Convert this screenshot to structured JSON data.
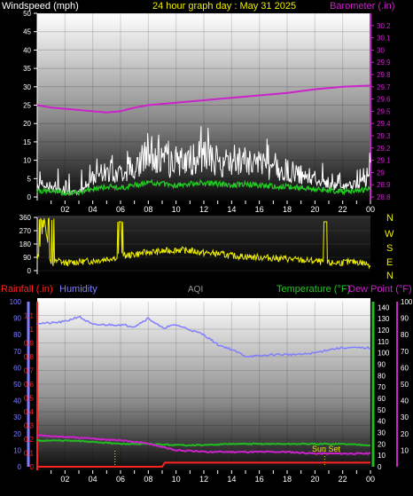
{
  "panel_top": {
    "left_label": "Windspeed (mph)",
    "title": "24 hour graph day : May 31 2025",
    "right_label": "Barometer (.in)"
  },
  "panel_mid": {
    "compass": [
      "N",
      "W",
      "S",
      "E",
      "N"
    ]
  },
  "panel_bottom": {
    "rain_label": "Rainfall (.in)",
    "humidity_label": "Humidity",
    "aqi_label": "AQI",
    "temp_label": "Temperature (°F)",
    "dew_label": "Dew Point (°F)",
    "sunset_label": "Sun Set"
  },
  "colors": {
    "wind": "#ffffff",
    "wind_avg": "#22cc22",
    "barometer": "#cc22cc",
    "direction": "#eeee00",
    "humidity": "#7f7fff",
    "temperature": "#22bb22",
    "dewpoint": "#cc22cc",
    "rain": "#ff2222"
  },
  "chart_data": [
    {
      "type": "line",
      "x_ticks": [
        "02",
        "04",
        "06",
        "08",
        "10",
        "12",
        "14",
        "16",
        "18",
        "20",
        "22",
        "00"
      ],
      "y_left": {
        "label": "Windspeed (mph)",
        "lim": [
          0,
          50
        ],
        "ticks": [
          "0",
          "5",
          "10",
          "15",
          "20",
          "25",
          "30",
          "35",
          "40",
          "45",
          "50"
        ]
      },
      "y_right": {
        "label": "Barometer (.in)",
        "lim": [
          28.8,
          30.3
        ],
        "ticks": [
          "28.8",
          "28.9",
          "29",
          "29.1",
          "29.2",
          "29.3",
          "29.4",
          "29.5",
          "29.6",
          "29.7",
          "29.8",
          "29.9",
          "30",
          "30.1",
          "30.2"
        ]
      },
      "series": [
        {
          "name": "Barometer (.in)",
          "axis": "right",
          "x": [
            0,
            1,
            2,
            3,
            4,
            5,
            6,
            7,
            8,
            9,
            10,
            12,
            14,
            16,
            18,
            20,
            22,
            24
          ],
          "values": [
            29.55,
            29.53,
            29.52,
            29.51,
            29.5,
            29.49,
            29.5,
            29.53,
            29.55,
            29.56,
            29.57,
            29.59,
            29.61,
            29.63,
            29.65,
            29.68,
            29.7,
            29.71
          ]
        },
        {
          "name": "Windspeed (mph)",
          "axis": "left",
          "x": [
            0,
            1,
            2,
            3,
            4,
            5,
            6,
            7,
            8,
            9,
            10,
            11,
            12,
            13,
            14,
            15,
            16,
            17,
            18,
            19,
            20,
            21,
            22,
            23,
            24
          ],
          "values": [
            3,
            2,
            1,
            1,
            4,
            6,
            5,
            7,
            9,
            8,
            7,
            8,
            9,
            8,
            7,
            8,
            7,
            6,
            6,
            5,
            4,
            3,
            2,
            3,
            4
          ]
        }
      ]
    },
    {
      "type": "line",
      "x_ticks": [
        "02",
        "04",
        "06",
        "08",
        "10",
        "12",
        "14",
        "16",
        "18",
        "20",
        "22",
        "00"
      ],
      "y_left": {
        "lim": [
          0,
          360
        ],
        "ticks": [
          "0",
          "90",
          "180",
          "270",
          "360"
        ]
      },
      "series": [
        {
          "name": "Wind direction",
          "x": [
            0,
            0.5,
            1,
            1.5,
            2,
            3,
            4,
            5,
            6,
            7,
            8,
            9,
            10,
            11,
            12,
            13,
            14,
            15,
            16,
            17,
            18,
            19,
            20,
            21,
            22,
            23,
            24
          ],
          "values": [
            60,
            340,
            40,
            70,
            50,
            60,
            65,
            80,
            95,
            110,
            125,
            130,
            140,
            135,
            120,
            115,
            100,
            95,
            90,
            85,
            80,
            70,
            65,
            50,
            55,
            60,
            40
          ]
        }
      ]
    },
    {
      "type": "line",
      "x_ticks": [
        "02",
        "04",
        "06",
        "08",
        "10",
        "12",
        "14",
        "16",
        "18",
        "20",
        "22",
        "00"
      ],
      "y_rain": {
        "label": "Rainfall (.in)",
        "lim": [
          0,
          1.2
        ],
        "ticks": [
          "0",
          "0.1",
          "0.2",
          "0.3",
          "0.4",
          "0.5",
          "0.6",
          "0.7",
          "0.8",
          "0.9",
          "1",
          "1.1"
        ]
      },
      "y_humidity": {
        "label": "Humidity",
        "lim": [
          0,
          100
        ],
        "ticks": [
          "0",
          "10",
          "20",
          "30",
          "40",
          "50",
          "60",
          "70",
          "80",
          "90",
          "100"
        ]
      },
      "y_temp": {
        "label": "Temperature (°F)",
        "lim": [
          0,
          145
        ],
        "ticks": [
          "0",
          "10",
          "20",
          "30",
          "40",
          "50",
          "60",
          "70",
          "80",
          "90",
          "100",
          "110",
          "120",
          "130",
          "140"
        ]
      },
      "y_dew": {
        "label": "Dew Point (°F)",
        "lim": [
          0,
          100
        ],
        "ticks": [
          "10",
          "20",
          "30",
          "40",
          "50",
          "60",
          "70",
          "80",
          "90",
          "100"
        ]
      },
      "series": [
        {
          "name": "Humidity",
          "axis": "humidity",
          "x": [
            0,
            1,
            2,
            3,
            4,
            5,
            6,
            7,
            8,
            9,
            10,
            11,
            12,
            13,
            14,
            15,
            16,
            17,
            18,
            19,
            20,
            21,
            22,
            23,
            24
          ],
          "values": [
            87,
            87,
            88,
            91,
            86,
            86,
            86,
            85,
            90,
            84,
            86,
            83,
            80,
            74,
            71,
            67,
            67,
            68,
            68,
            68,
            69,
            71,
            72,
            72,
            72
          ]
        },
        {
          "name": "Temperature (°F)",
          "axis": "temp",
          "x": [
            0,
            2,
            4,
            6,
            8,
            10,
            12,
            14,
            16,
            18,
            20,
            22,
            24
          ],
          "values": [
            23,
            23,
            22,
            20,
            20,
            19,
            19,
            20,
            20,
            20,
            20,
            20,
            19
          ]
        },
        {
          "name": "Dew Point (°F)",
          "axis": "dew",
          "x": [
            0,
            2,
            4,
            6,
            8,
            10,
            12,
            14,
            16,
            18,
            20,
            22,
            24
          ],
          "values": [
            19,
            18,
            17,
            16,
            14,
            10,
            9,
            9,
            9,
            9,
            8,
            8,
            8
          ]
        },
        {
          "name": "Rainfall (.in)",
          "axis": "rain",
          "x": [
            0,
            5,
            9,
            9.2,
            24
          ],
          "values": [
            0,
            0,
            0,
            0.03,
            0.03
          ]
        }
      ]
    }
  ]
}
